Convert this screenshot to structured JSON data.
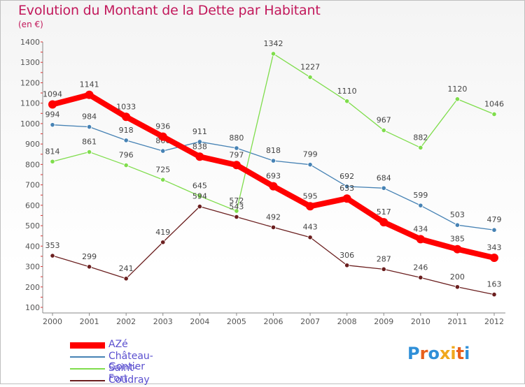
{
  "chart_data": {
    "type": "line",
    "title": "Evolution du Montant de la Dette par Habitant",
    "subtitle": "(en €)",
    "categories": [
      "2000",
      "2001",
      "2002",
      "2003",
      "2004",
      "2005",
      "2006",
      "2007",
      "2008",
      "2009",
      "2010",
      "2011",
      "2012"
    ],
    "ylim": [
      100,
      1400
    ],
    "yticks": [
      100,
      200,
      300,
      400,
      500,
      600,
      700,
      800,
      900,
      1000,
      1100,
      1200,
      1300,
      1400
    ],
    "grid": false,
    "legend_position": "bottom-left",
    "series": [
      {
        "name": "AZé",
        "color": "#ff0000",
        "values": [
          1094,
          1141,
          1033,
          936,
          838,
          797,
          693,
          595,
          633,
          517,
          434,
          385,
          343
        ]
      },
      {
        "name": "Château-Gontier",
        "color": "#4682b4",
        "values": [
          994,
          984,
          918,
          866,
          911,
          880,
          818,
          799,
          692,
          684,
          599,
          503,
          479
        ]
      },
      {
        "name": "Saint-Fort",
        "color": "#7fdd4c",
        "values": [
          814,
          861,
          796,
          725,
          645,
          572,
          1342,
          1227,
          1110,
          967,
          882,
          1120,
          1046
        ]
      },
      {
        "name": "Coudray",
        "color": "#6b1f1f",
        "values": [
          353,
          299,
          241,
          419,
          594,
          543,
          492,
          443,
          306,
          287,
          246,
          200,
          163
        ]
      }
    ]
  },
  "legend": {
    "items": [
      "AZé",
      "Château-Gontier",
      "Saint-Fort",
      "Coudray"
    ]
  },
  "logo": {
    "letters": [
      "P",
      "r",
      "o",
      "x",
      "i",
      "t",
      "i"
    ],
    "colors": [
      "#2f8fd8",
      "#e8601c",
      "#2f8fd8",
      "#f0a81c",
      "#f0a81c",
      "#e8601c",
      "#2f8fd8"
    ]
  }
}
